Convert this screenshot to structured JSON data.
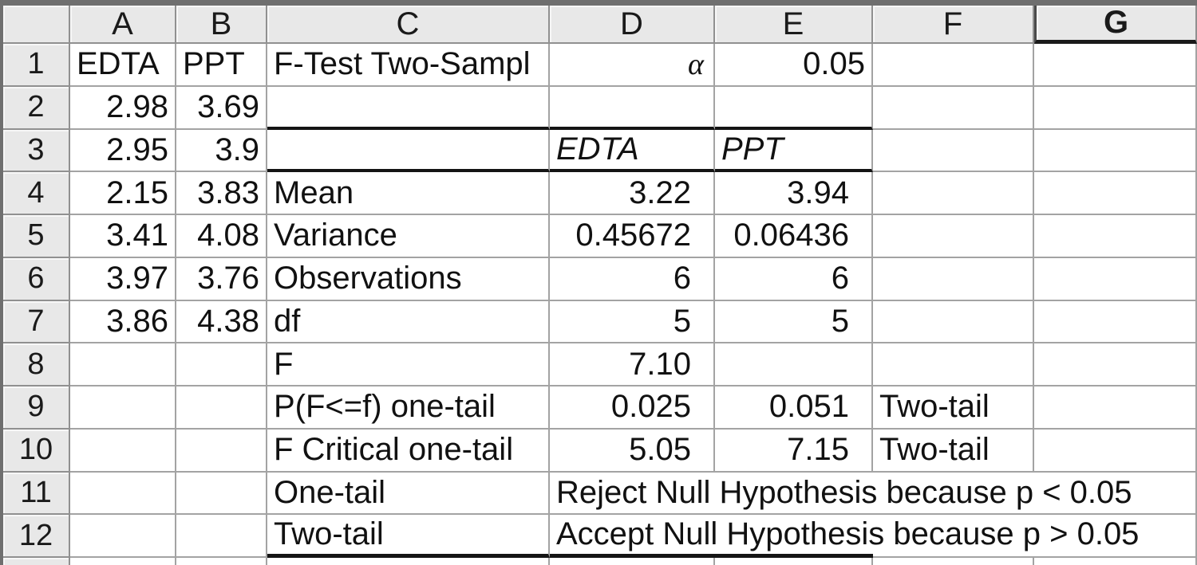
{
  "sheet": {
    "column_headers": [
      "A",
      "B",
      "C",
      "D",
      "E",
      "F",
      "G"
    ],
    "row_headers": [
      "1",
      "2",
      "3",
      "4",
      "5",
      "6",
      "7",
      "8",
      "9",
      "10",
      "11",
      "12"
    ],
    "selected_column_header": "G",
    "cells": {
      "A1": "EDTA",
      "B1": "PPT",
      "C1": "F-Test Two-Sampl",
      "D1": "α",
      "E1": "0.05",
      "A2": "2.98",
      "B2": "3.69",
      "A3": "2.95",
      "B3": "3.9",
      "D3": "EDTA",
      "E3": "PPT",
      "A4": "2.15",
      "B4": "3.83",
      "C4": "Mean",
      "D4": "3.22",
      "E4": "3.94",
      "A5": "3.41",
      "B5": "4.08",
      "C5": "Variance",
      "D5": "0.45672",
      "E5": "0.06436",
      "A6": "3.97",
      "B6": "3.76",
      "C6": "Observations",
      "D6": "6",
      "E6": "6",
      "A7": "3.86",
      "B7": "4.38",
      "C7": "df",
      "D7": "5",
      "E7": "5",
      "C8": "F",
      "D8": "7.10",
      "C9": "P(F<=f) one-tail",
      "D9": "0.025",
      "E9": "0.051",
      "F9": "Two-tail",
      "C10": "F Critical one-tail",
      "D10": "5.05",
      "E10": "7.15",
      "F10": "Two-tail",
      "C11": "One-tail",
      "D11": "Reject Null Hypothesis because p < 0.05",
      "C12": "Two-tail",
      "D12": "Accept Null Hypothesis because p > 0.05"
    },
    "colors": {
      "header_bg": "#e8e8e8",
      "gridline": "#a3a3a3",
      "header_border": "#909090",
      "thick_border": "#141414",
      "frame": "#6f6f6f",
      "cell_bg": "#ffffff",
      "text": "#111111"
    }
  }
}
